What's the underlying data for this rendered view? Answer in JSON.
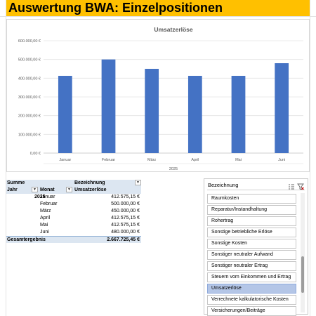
{
  "sheet_title": "Auswertung BWA: Einzelpositionen",
  "chart_data": {
    "type": "bar",
    "title": "Umsatzerlöse",
    "categories": [
      "Januar",
      "Februar",
      "März",
      "April",
      "Mai",
      "Juni"
    ],
    "group_label": "2025",
    "values": [
      412575.15,
      500000.0,
      450000.0,
      412575.15,
      412575.15,
      480000.0
    ],
    "ylim": [
      0,
      600000
    ],
    "y_ticks": [
      "0,00 €",
      "100.000,00 €",
      "200.000,00 €",
      "300.000,00 €",
      "400.000,00 €",
      "500.000,00 €",
      "600.000,00 €"
    ],
    "bar_color": "#4472c4",
    "grid": true
  },
  "pivot": {
    "header1": {
      "summe": "Summe",
      "bezeichnung": "Bezeichnung"
    },
    "header2": {
      "jahr": "Jahr",
      "monat": "Monat",
      "value_label": "Umsatzerlöse"
    },
    "year": "2025",
    "rows": [
      {
        "month": "Januar",
        "value": "412.575,15 €"
      },
      {
        "month": "Februar",
        "value": "500.000,00 €"
      },
      {
        "month": "März",
        "value": "450.000,00 €"
      },
      {
        "month": "April",
        "value": "412.575,15 €"
      },
      {
        "month": "Mai",
        "value": "412.575,15 €"
      },
      {
        "month": "Juni",
        "value": "480.000,00 €"
      }
    ],
    "total_label": "Gesamtergebnis",
    "total_value": "2.667.725,45 €",
    "header_color": "#dce6f1"
  },
  "slicer": {
    "header": "Bezeichnung",
    "multi_select_icon": "multi-select-icon",
    "clear_filter_icon": "clear-filter-icon",
    "items": [
      {
        "label": "Raumkosten",
        "selected": false
      },
      {
        "label": "Reparatur/Instandhaltung",
        "selected": false
      },
      {
        "label": "Rohertrag",
        "selected": false
      },
      {
        "label": "Sonstige betriebliche Erlöse",
        "selected": false
      },
      {
        "label": "Sonstige Kosten",
        "selected": false
      },
      {
        "label": "Sonstiger neutraler Aufwand",
        "selected": false
      },
      {
        "label": "Sonstiger neutraler Ertrag",
        "selected": false
      },
      {
        "label": "Steuern vom Einkommen und Ertrag",
        "selected": false
      },
      {
        "label": "Umsatzerlöse",
        "selected": true
      },
      {
        "label": "Verrechnete kalkulatorische Kosten",
        "selected": false
      },
      {
        "label": "Versicherungen/Beiträge",
        "selected": false
      }
    ],
    "selected_color": "#b4c6e7"
  }
}
